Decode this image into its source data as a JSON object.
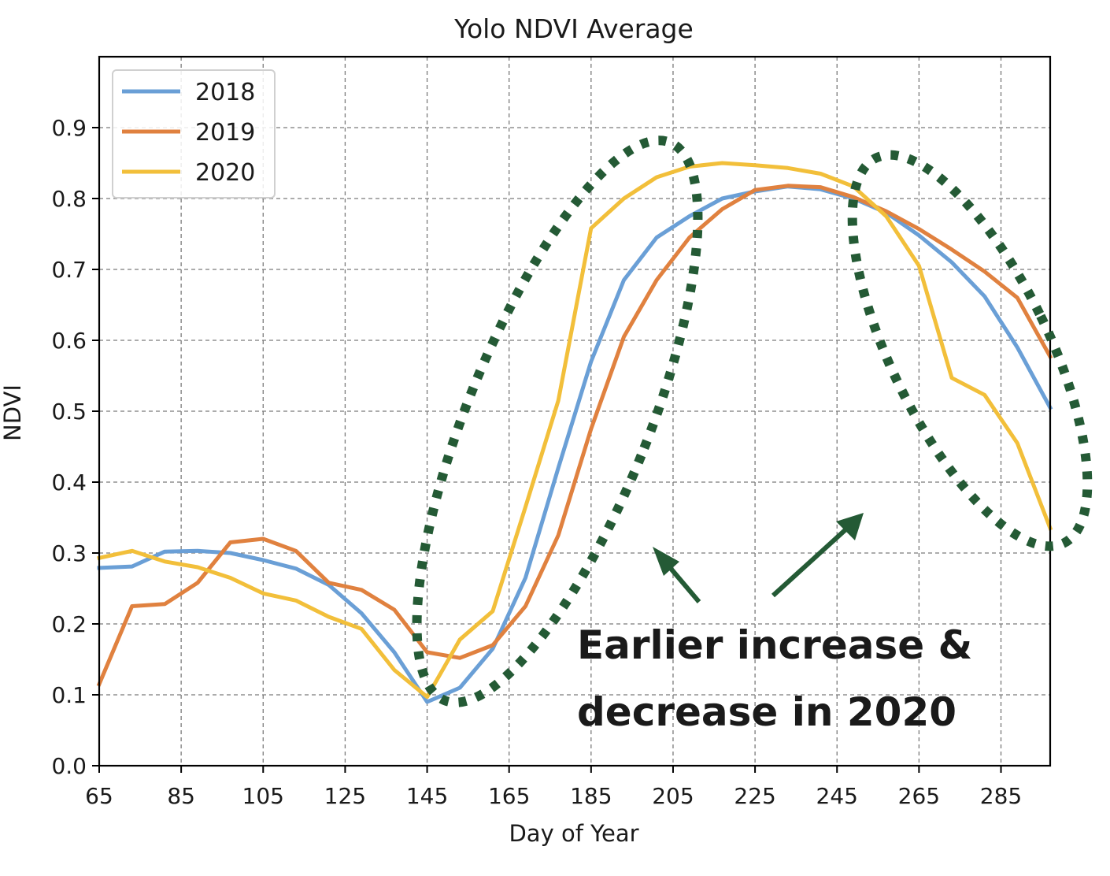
{
  "chart_data": {
    "type": "line",
    "title": "Yolo NDVI Average",
    "xlabel": "Day of Year",
    "ylabel": "NDVI",
    "xlim": [
      65,
      297
    ],
    "ylim": [
      0,
      1.0
    ],
    "xticks": [
      65,
      85,
      105,
      125,
      145,
      165,
      185,
      205,
      225,
      245,
      265,
      285
    ],
    "yticks": [
      0.0,
      0.1,
      0.2,
      0.3,
      0.4,
      0.5,
      0.6,
      0.7,
      0.8,
      0.9
    ],
    "xtick_labels": [
      "65",
      "85",
      "105",
      "125",
      "145",
      "165",
      "185",
      "205",
      "225",
      "245",
      "265",
      "285"
    ],
    "ytick_labels": [
      "0.0",
      "0.1",
      "0.2",
      "0.3",
      "0.4",
      "0.5",
      "0.6",
      "0.7",
      "0.8",
      "0.9"
    ],
    "grid": true,
    "legend_position": "top-left",
    "x": [
      65,
      73,
      81,
      89,
      97,
      105,
      113,
      121,
      129,
      137,
      145,
      153,
      161,
      169,
      177,
      185,
      193,
      201,
      209,
      217,
      225,
      233,
      241,
      249,
      257,
      265,
      273,
      281,
      289,
      297
    ],
    "series": [
      {
        "name": "2018",
        "color": "#6a9fd6",
        "values": [
          0.279,
          0.281,
          0.302,
          0.303,
          0.3,
          0.29,
          0.278,
          0.255,
          0.215,
          0.16,
          0.09,
          0.11,
          0.165,
          0.265,
          0.42,
          0.57,
          0.685,
          0.745,
          0.775,
          0.8,
          0.81,
          0.817,
          0.813,
          0.8,
          0.78,
          0.748,
          0.71,
          0.662,
          0.59,
          0.505
        ]
      },
      {
        "name": "2019",
        "color": "#e0813f",
        "values": [
          0.115,
          0.225,
          0.228,
          0.258,
          0.315,
          0.32,
          0.303,
          0.258,
          0.248,
          0.22,
          0.16,
          0.152,
          0.17,
          0.225,
          0.325,
          0.475,
          0.605,
          0.685,
          0.745,
          0.785,
          0.812,
          0.818,
          0.816,
          0.802,
          0.782,
          0.757,
          0.728,
          0.697,
          0.66,
          0.577
        ]
      },
      {
        "name": "2020",
        "color": "#f2bf3a",
        "values": [
          0.293,
          0.303,
          0.288,
          0.28,
          0.265,
          0.243,
          0.233,
          0.21,
          0.193,
          0.135,
          0.097,
          0.178,
          0.218,
          0.365,
          0.515,
          0.758,
          0.8,
          0.83,
          0.845,
          0.85,
          0.847,
          0.843,
          0.835,
          0.817,
          0.775,
          0.705,
          0.547,
          0.523,
          0.455,
          0.335
        ]
      }
    ],
    "annotations": [
      {
        "text_line1": "Earlier increase &",
        "text_line2": "decrease in 2020",
        "color": "#245a35"
      }
    ]
  }
}
